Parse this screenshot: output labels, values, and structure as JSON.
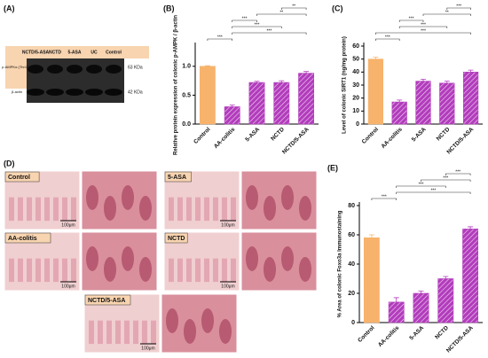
{
  "chart_data": [
    {
      "type": "bar",
      "panel": "(B)",
      "ylabel": "Relative protein expression of colonic p-AMPK / β-actin",
      "categories": [
        "Control",
        "AA-colitis",
        "5-ASA",
        "NCTD",
        "NCTD/5-ASA"
      ],
      "values": [
        1.0,
        0.3,
        0.72,
        0.72,
        0.88
      ],
      "errors": [
        0.01,
        0.03,
        0.02,
        0.03,
        0.03
      ],
      "bar_colors": [
        "#f7b36c",
        "#b23cbc",
        "#b23cbc",
        "#b23cbc",
        "#b23cbc"
      ],
      "hatch": [
        false,
        true,
        true,
        true,
        true
      ],
      "ylim": [
        0,
        1.35
      ],
      "yticks": [
        {
          "value": 0,
          "label": "0.0"
        },
        {
          "value": 0.5,
          "label": "0.5"
        },
        {
          "value": 1,
          "label": "1.0"
        }
      ],
      "annotations": [
        {
          "label": "***",
          "between": [
            "Control",
            "AA-colitis"
          ]
        },
        {
          "label": "***",
          "between": [
            "AA-colitis",
            "NCTD/5-ASA"
          ]
        },
        {
          "label": "***",
          "between": [
            "AA-colitis",
            "NCTD"
          ]
        },
        {
          "label": "***",
          "between": [
            "AA-colitis",
            "5-ASA"
          ]
        },
        {
          "label": "**",
          "between": [
            "5-ASA",
            "NCTD/5-ASA"
          ]
        },
        {
          "label": "**",
          "between": [
            "NCTD",
            "NCTD/5-ASA"
          ]
        }
      ]
    },
    {
      "type": "bar",
      "panel": "(C)",
      "ylabel": "Level of colonic SIRT1 (ng/mg protein)",
      "categories": [
        "Control",
        "AA-colitis",
        "5-ASA",
        "NCTD",
        "NCTD/5-ASA"
      ],
      "values": [
        50,
        17,
        33,
        31.5,
        40
      ],
      "errors": [
        1.5,
        1.5,
        1.5,
        1.5,
        1.5
      ],
      "bar_colors": [
        "#f7b36c",
        "#b23cbc",
        "#b23cbc",
        "#b23cbc",
        "#b23cbc"
      ],
      "hatch": [
        false,
        true,
        true,
        true,
        true
      ],
      "ylim": [
        0,
        60
      ],
      "yticks": [
        0,
        10,
        20,
        30,
        40,
        50,
        60
      ],
      "annotations": [
        {
          "label": "***",
          "between": [
            "Control",
            "AA-colitis"
          ]
        },
        {
          "label": "***",
          "between": [
            "Control",
            "NCTD/5-ASA"
          ]
        },
        {
          "label": "***",
          "between": [
            "AA-colitis",
            "NCTD"
          ]
        },
        {
          "label": "***",
          "between": [
            "AA-colitis",
            "5-ASA"
          ]
        },
        {
          "label": "**",
          "between": [
            "5-ASA",
            "NCTD/5-ASA"
          ]
        },
        {
          "label": "***",
          "between": [
            "NCTD",
            "NCTD/5-ASA"
          ]
        }
      ]
    },
    {
      "type": "bar",
      "panel": "(E)",
      "ylabel": "% Area of colonic Foxo3a Immunostaining",
      "categories": [
        "Control",
        "AA-colitis",
        "5-ASA",
        "NCTD",
        "NCTD/5-ASA"
      ],
      "values": [
        58,
        14,
        20,
        30,
        64
      ],
      "errors": [
        2,
        3,
        1.5,
        1.5,
        1.5
      ],
      "bar_colors": [
        "#f7b36c",
        "#b23cbc",
        "#b23cbc",
        "#b23cbc",
        "#b23cbc"
      ],
      "hatch": [
        false,
        true,
        true,
        true,
        true
      ],
      "ylim": [
        0,
        80
      ],
      "yticks": [
        0,
        20,
        40,
        60,
        80
      ],
      "annotations": [
        {
          "label": "***",
          "between": [
            "Control",
            "AA-colitis"
          ]
        },
        {
          "label": "***",
          "between": [
            "AA-colitis",
            "NCTD/5-ASA"
          ]
        },
        {
          "label": "***",
          "between": [
            "AA-colitis",
            "NCTD"
          ]
        },
        {
          "label": "***",
          "between": [
            "5-ASA",
            "NCTD/5-ASA"
          ]
        },
        {
          "label": "***",
          "between": [
            "NCTD",
            "NCTD/5-ASA"
          ]
        }
      ]
    }
  ],
  "blot": {
    "panel": "(A)",
    "lanes": [
      "NCTD/5-ASA",
      "NCTD",
      "5-ASA",
      "UC",
      "Control"
    ],
    "rows": [
      {
        "label": "p-AMPKα (Thr172)",
        "size": "63 KDa"
      },
      {
        "label": "β-actin",
        "size": "42 KDa"
      }
    ]
  },
  "histology": {
    "panel": "(D)",
    "images": [
      {
        "label": "Control",
        "scale": "100μm"
      },
      {
        "label": "5-ASA",
        "scale": "100μm"
      },
      {
        "label": "AA-colitis",
        "scale": "100μm"
      },
      {
        "label": "NCTD",
        "scale": "100μm"
      },
      {
        "label": "NCTD/5-ASA",
        "scale": "100μm"
      }
    ]
  }
}
